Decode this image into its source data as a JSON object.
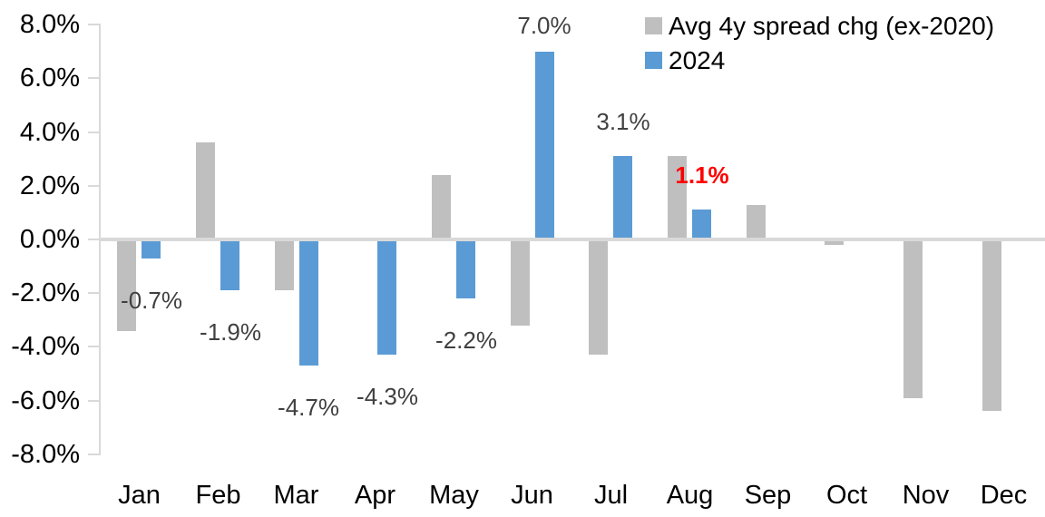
{
  "chart_data": {
    "type": "bar",
    "title": "",
    "xlabel": "",
    "ylabel": "",
    "categories": [
      "Jan",
      "Feb",
      "Mar",
      "Apr",
      "May",
      "Jun",
      "Jul",
      "Aug",
      "Sep",
      "Oct",
      "Nov",
      "Dec"
    ],
    "series": [
      {
        "name": "Avg 4y spread chg (ex-2020)",
        "color": "#BFBFBF",
        "values": [
          -3.4,
          3.6,
          -1.9,
          0.0,
          2.4,
          -3.2,
          -4.3,
          3.1,
          1.3,
          -0.2,
          -5.9,
          -6.4
        ]
      },
      {
        "name": "2024",
        "color": "#5B9BD5",
        "values": [
          -0.7,
          -1.9,
          -4.7,
          -4.3,
          -2.2,
          7.0,
          3.1,
          1.1,
          null,
          null,
          null,
          null
        ]
      }
    ],
    "y_axis": {
      "min": -8,
      "max": 8,
      "step": 2,
      "unit": "%",
      "tick_labels": [
        "8.0%",
        "6.0%",
        "4.0%",
        "2.0%",
        "0.0%",
        "-2.0%",
        "-4.0%",
        "-6.0%",
        "-8.0%"
      ]
    },
    "legend_position": "top-right",
    "grid": "zero-line-only",
    "annotations": [
      {
        "category": "Jan",
        "series": "2024",
        "text": "-0.7%",
        "color": "#404040",
        "bold": false
      },
      {
        "category": "Feb",
        "series": "2024",
        "text": "-1.9%",
        "color": "#404040",
        "bold": false
      },
      {
        "category": "Mar",
        "series": "2024",
        "text": "-4.7%",
        "color": "#404040",
        "bold": false
      },
      {
        "category": "Apr",
        "series": "2024",
        "text": "-4.3%",
        "color": "#404040",
        "bold": false
      },
      {
        "category": "May",
        "series": "2024",
        "text": "-2.2%",
        "color": "#404040",
        "bold": false
      },
      {
        "category": "Jun",
        "series": "2024",
        "text": "7.0%",
        "color": "#404040",
        "bold": false
      },
      {
        "category": "Jul",
        "series": "2024",
        "text": "3.1%",
        "color": "#404040",
        "bold": false
      },
      {
        "category": "Aug",
        "series": "2024",
        "text": "1.1%",
        "color": "#FF0000",
        "bold": true
      }
    ]
  },
  "colors": {
    "axis_line": "#D9D9D9",
    "background": "#FFFFFF",
    "tick_label_text": "#000000",
    "annotation_default": "#404040",
    "annotation_emphasis": "#FF0000"
  }
}
